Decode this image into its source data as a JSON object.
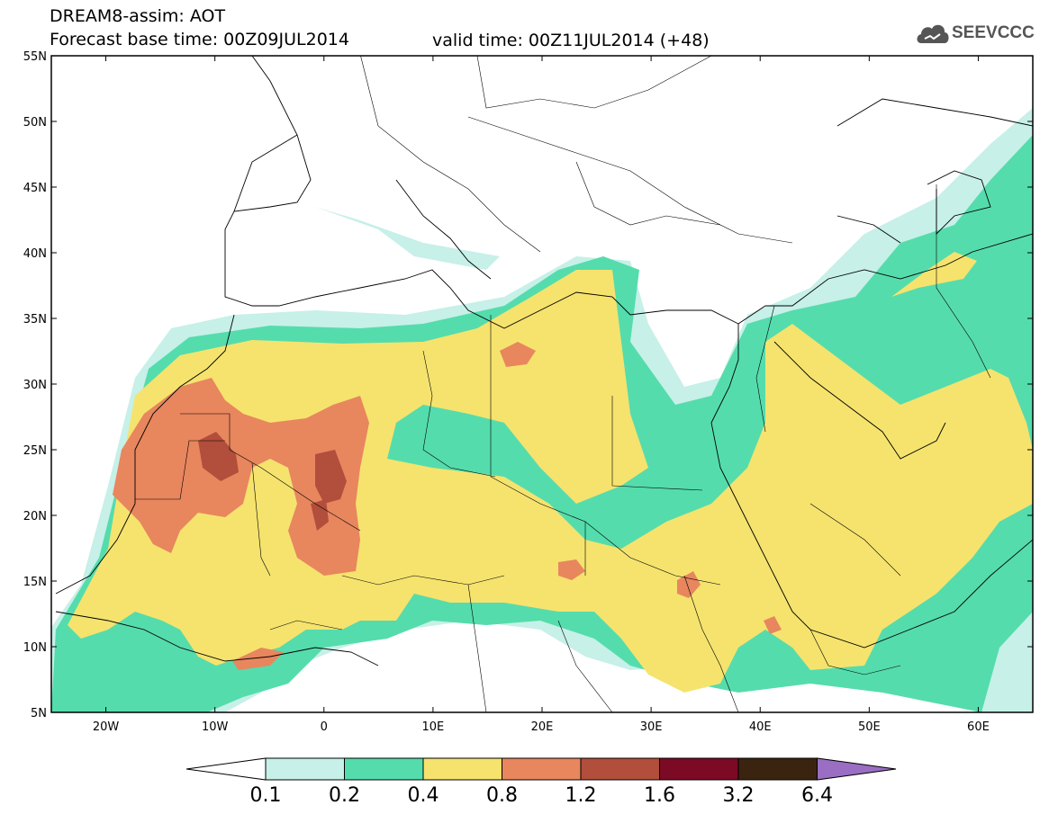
{
  "header": {
    "title_line1": "DREAM8-assim: AOT",
    "title_line2": "Forecast base time: 00Z09JUL2014",
    "valid_time": "valid time: 00Z11JUL2014 (+48)"
  },
  "logo": {
    "text": "SEEVCCC",
    "icon": "cloud-icon"
  },
  "map": {
    "lat_labels": [
      "55N",
      "50N",
      "45N",
      "40N",
      "35N",
      "30N",
      "25N",
      "20N",
      "15N",
      "10N",
      "5N"
    ],
    "lon_labels": [
      "20W",
      "10W",
      "0",
      "10E",
      "20E",
      "30E",
      "40E",
      "50E",
      "60E"
    ],
    "lon_range": [
      -25,
      65
    ],
    "lat_range": [
      5,
      55
    ]
  },
  "colorbar": {
    "labels": [
      "0.1",
      "0.2",
      "0.4",
      "0.8",
      "1.2",
      "1.6",
      "3.2",
      "6.4"
    ],
    "colors": [
      "#c6f0e8",
      "#55dcac",
      "#f5e36e",
      "#e8865e",
      "#b24e3c",
      "#7c0a25",
      "#3a2410",
      "#9a6ec2"
    ],
    "under_color": "#ffffff"
  }
}
